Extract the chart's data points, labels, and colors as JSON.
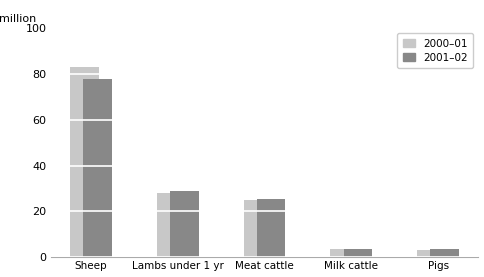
{
  "categories": [
    "Sheep",
    "Lambs under 1 yr",
    "Meat cattle",
    "Milk cattle",
    "Pigs"
  ],
  "values_2000": [
    83,
    28,
    25,
    3.5,
    3.0
  ],
  "values_2001": [
    78,
    29,
    25.5,
    3.5,
    3.5
  ],
  "color_2000": "#c8c8c8",
  "color_2001": "#888888",
  "ylabel": "million",
  "ylim": [
    0,
    100
  ],
  "yticks": [
    0,
    20,
    40,
    60,
    80,
    100
  ],
  "legend_labels": [
    "2000–01",
    "2001–02"
  ],
  "bar_width": 0.38,
  "x_positions": [
    0.5,
    2.0,
    3.5,
    5.0,
    6.5
  ]
}
